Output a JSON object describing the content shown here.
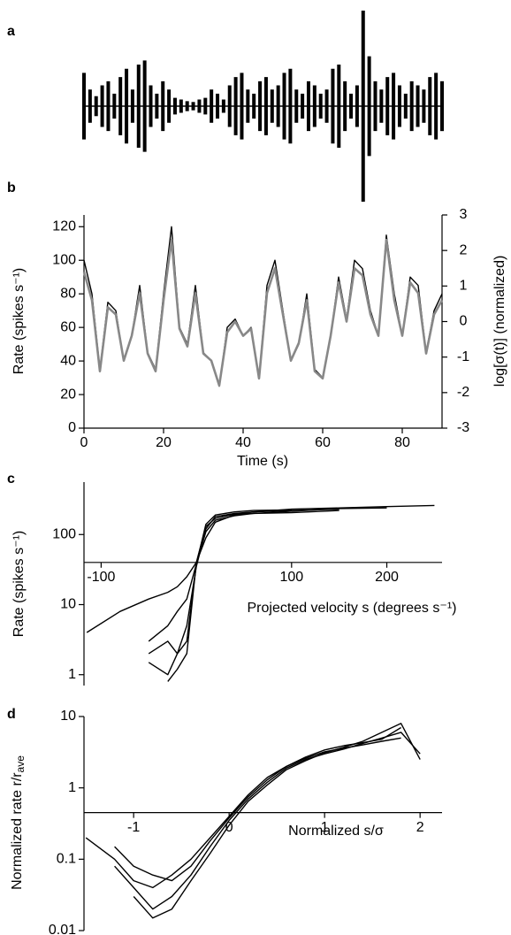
{
  "chart_data": [
    {
      "type": "waveform",
      "panel_label": "a",
      "color": "#000000",
      "values": [
        40,
        20,
        12,
        25,
        30,
        15,
        35,
        45,
        20,
        50,
        55,
        25,
        15,
        30,
        20,
        10,
        8,
        6,
        5,
        8,
        10,
        20,
        15,
        8,
        25,
        35,
        40,
        20,
        15,
        30,
        35,
        20,
        25,
        40,
        45,
        20,
        15,
        30,
        25,
        15,
        20,
        45,
        50,
        30,
        15,
        25,
        115,
        60,
        30,
        20,
        35,
        40,
        25,
        15,
        30,
        25,
        20,
        35,
        40,
        30
      ]
    },
    {
      "type": "line",
      "panel_label": "b",
      "x": [
        0,
        2,
        4,
        6,
        8,
        10,
        12,
        14,
        16,
        18,
        20,
        22,
        24,
        26,
        28,
        30,
        32,
        34,
        36,
        38,
        40,
        42,
        44,
        46,
        48,
        50,
        52,
        54,
        56,
        58,
        60,
        62,
        64,
        66,
        68,
        70,
        72,
        74,
        76,
        78,
        80,
        82,
        84,
        86,
        88,
        90
      ],
      "xlim": [
        0,
        90
      ],
      "xticks": [
        0,
        20,
        40,
        60,
        80
      ],
      "ylim": [
        0,
        127
      ],
      "yticks": [
        0,
        20,
        40,
        60,
        80,
        100,
        120
      ],
      "y2lim": [
        -3,
        3
      ],
      "y2ticks": [
        -3,
        -2,
        -1,
        0,
        1,
        2,
        3
      ],
      "xlabel": "Time (s)",
      "ylabel": "Rate (spikes s⁻¹)",
      "y2label": "log[σ(t)] (normalized)",
      "series": [
        {
          "color": "#000000",
          "values": [
            100,
            80,
            35,
            75,
            70,
            40,
            55,
            85,
            45,
            35,
            80,
            120,
            60,
            50,
            85,
            45,
            40,
            25,
            60,
            65,
            55,
            60,
            30,
            85,
            100,
            70,
            40,
            50,
            80,
            35,
            30,
            55,
            90,
            65,
            100,
            95,
            70,
            55,
            115,
            80,
            55,
            90,
            85,
            45,
            70,
            80
          ]
        },
        {
          "color": "#888888",
          "axis": "y2",
          "values": [
            1.4,
            0.6,
            -1.4,
            0.4,
            0.2,
            -1.1,
            -0.4,
            0.8,
            -0.9,
            -1.4,
            0.6,
            2.3,
            -0.2,
            -0.7,
            0.8,
            -0.9,
            -1.1,
            -1.8,
            -0.3,
            0.0,
            -0.4,
            -0.2,
            -1.6,
            0.8,
            1.5,
            0.2,
            -1.1,
            -0.6,
            0.6,
            -1.4,
            -1.6,
            -0.4,
            1.1,
            0.0,
            1.5,
            1.3,
            0.2,
            -0.4,
            2.3,
            0.6,
            -0.4,
            1.1,
            0.8,
            -0.9,
            0.2,
            0.6
          ]
        }
      ]
    },
    {
      "type": "line",
      "panel_label": "c",
      "log_y": true,
      "x": [
        -115,
        -80,
        -50,
        -30,
        -20,
        -10,
        0,
        10,
        20,
        40,
        60,
        100,
        150,
        200,
        250
      ],
      "xlim": [
        -118,
        258
      ],
      "xticks": [
        -100,
        100,
        200
      ],
      "ylim": [
        0.7,
        560
      ],
      "yticks": [
        1,
        10,
        100
      ],
      "xaxis_at": 40,
      "xlabel": "Projected velocity s (degrees s⁻¹)",
      "ylabel": "Rate (spikes s⁻¹)",
      "series": [
        {
          "color": "#000000",
          "values": [
            4,
            8,
            12,
            15,
            18,
            25,
            40,
            90,
            150,
            190,
            210,
            230,
            240,
            250,
            260
          ]
        },
        {
          "color": "#000000",
          "values": [
            null,
            null,
            2,
            3,
            2,
            5,
            35,
            120,
            180,
            200,
            210,
            220,
            230,
            null,
            null
          ]
        },
        {
          "color": "#000000",
          "values": [
            null,
            null,
            1.5,
            1,
            2,
            3,
            38,
            140,
            190,
            210,
            220,
            225,
            null,
            null,
            null
          ]
        },
        {
          "color": "#000000",
          "values": [
            null,
            null,
            null,
            0.8,
            1.2,
            2,
            40,
            130,
            170,
            195,
            200,
            215,
            235,
            240,
            null
          ]
        },
        {
          "color": "#000000",
          "values": [
            null,
            null,
            3,
            5,
            8,
            12,
            38,
            110,
            160,
            185,
            200,
            205,
            220,
            null,
            null
          ]
        }
      ]
    },
    {
      "type": "line",
      "panel_label": "d",
      "log_y": true,
      "x": [
        -1.5,
        -1.2,
        -1,
        -0.8,
        -0.6,
        -0.4,
        -0.2,
        0,
        0.2,
        0.4,
        0.6,
        0.8,
        1,
        1.2,
        1.4,
        1.6,
        1.8,
        2
      ],
      "xlim": [
        -1.52,
        2.23
      ],
      "xticks": [
        -1,
        0,
        1,
        2
      ],
      "ylim": [
        0.01,
        10
      ],
      "yticks": [
        0.01,
        0.1,
        1,
        10
      ],
      "xaxis_at": 0.45,
      "xlabel": "Normalized s/σ",
      "ylabel": "Normalized  rate r/r",
      "ylabel_sub": "ave",
      "series": [
        {
          "color": "#000000",
          "values": [
            0.2,
            0.1,
            0.05,
            0.04,
            0.06,
            0.1,
            0.2,
            0.4,
            0.8,
            1.4,
            2,
            2.6,
            3.2,
            3.6,
            4,
            4.5,
            5,
            null
          ]
        },
        {
          "color": "#000000",
          "values": [
            null,
            0.08,
            0.04,
            0.02,
            0.03,
            0.06,
            0.15,
            0.35,
            0.7,
            1.2,
            1.9,
            2.5,
            3,
            3.5,
            4.2,
            5,
            6,
            3
          ]
        },
        {
          "color": "#000000",
          "values": [
            null,
            0.15,
            0.08,
            0.06,
            0.05,
            0.08,
            0.18,
            0.38,
            0.75,
            1.3,
            2,
            2.7,
            3.4,
            3.9,
            4.3,
            4.8,
            7,
            null
          ]
        },
        {
          "color": "#000000",
          "values": [
            null,
            null,
            0.03,
            0.015,
            0.02,
            0.05,
            0.12,
            0.3,
            0.65,
            1.1,
            1.8,
            2.4,
            3.1,
            3.7,
            4.5,
            6,
            8,
            2.5
          ]
        }
      ]
    }
  ]
}
